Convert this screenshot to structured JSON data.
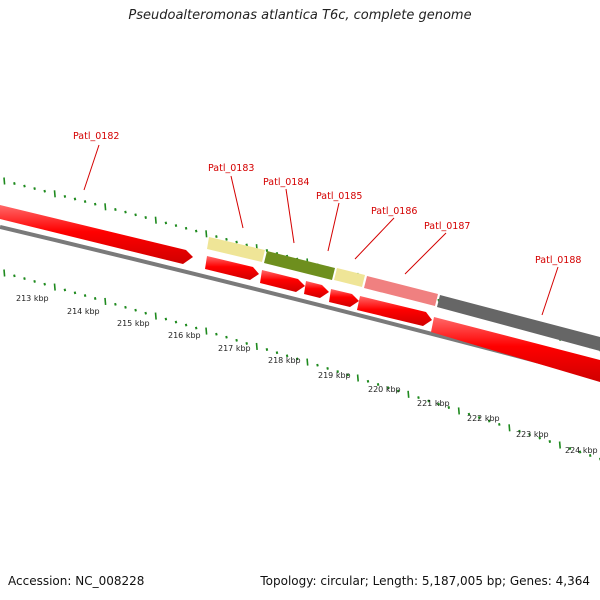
{
  "header": {
    "title": "Pseudoalteromonas atlantica T6c, complete genome"
  },
  "footer": {
    "accession": "Accession: NC_008228",
    "summary": "Topology: circular; Length: 5,187,005 bp; Genes: 4,364"
  },
  "colors": {
    "cds": "#ff0000",
    "cds_highlight": "#ff6a6a",
    "tick": "#1e8a1e",
    "backbone": "#7a7a7a",
    "label": "#d40000",
    "tRNA_yellow": "#efe597",
    "olive": "#6e8f1e",
    "pink": "#f08080",
    "gray": "#666666"
  },
  "gene_labels": [
    "Patl_0182",
    "Patl_0183",
    "Patl_0184",
    "Patl_0185",
    "Patl_0186",
    "Patl_0187",
    "Patl_0188"
  ],
  "scale_labels": [
    "213 kbp",
    "214 kbp",
    "215 kbp",
    "216 kbp",
    "217 kbp",
    "218 kbp",
    "219 kbp",
    "220 kbp",
    "221 kbp",
    "222 kbp",
    "223 kbp",
    "224 kbp"
  ]
}
